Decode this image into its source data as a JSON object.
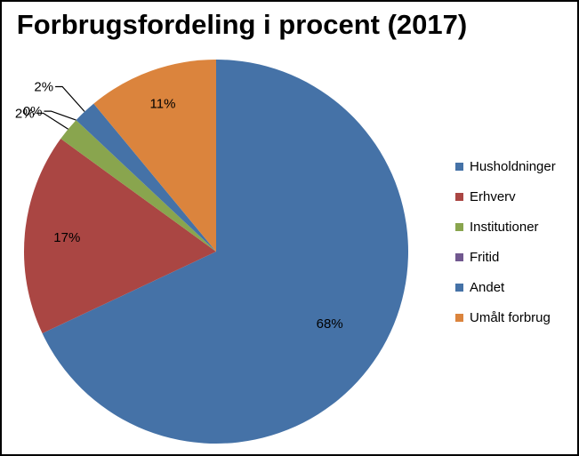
{
  "chart_data": {
    "type": "pie",
    "title": "Forbrugsfordeling i procent (2017)",
    "categories": [
      "Husholdninger",
      "Erhverv",
      "Institutioner",
      "Fritid",
      "Andet",
      "Umålt forbrug"
    ],
    "values": [
      68,
      17,
      2,
      0,
      2,
      11
    ],
    "data_labels": [
      "68%",
      "17%",
      "2%",
      "0%",
      "2%",
      "11%"
    ],
    "colors": [
      "#4572A7",
      "#AA4643",
      "#89A54E",
      "#71588F",
      "#4572A7",
      "#DB843D"
    ],
    "legend_position": "right",
    "start_angle_deg": 0,
    "direction": "clockwise"
  }
}
